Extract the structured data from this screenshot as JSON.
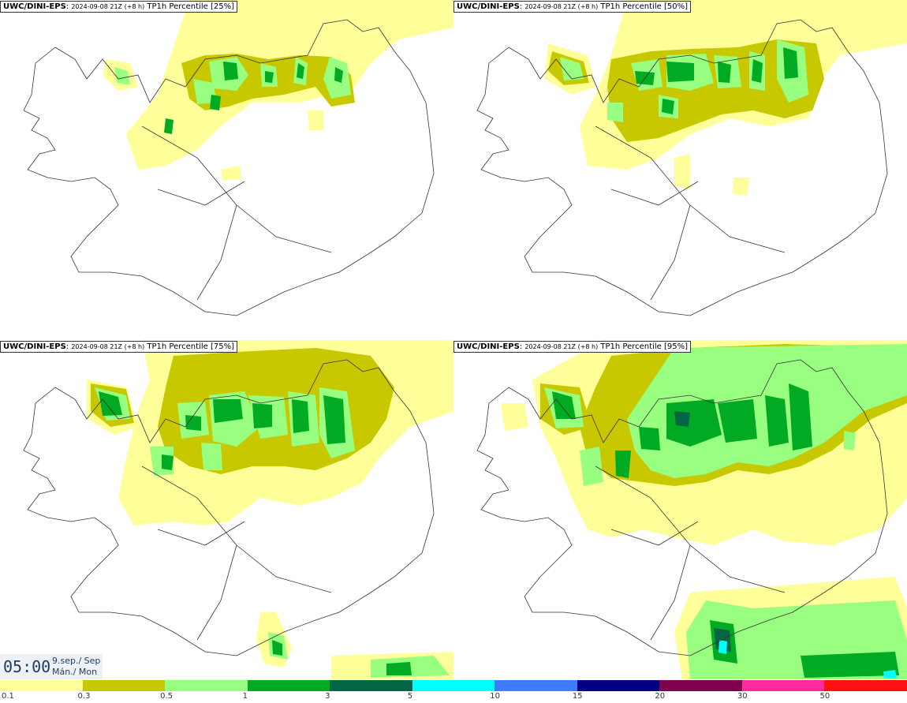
{
  "panels": [
    {
      "model": "UWC/DINI-EPS",
      "run": "2024-09-08 21Z (+8 h)",
      "field": "TP1h Percentile [25%]"
    },
    {
      "model": "UWC/DINI-EPS",
      "run": "2024-09-08 21Z (+8 h)",
      "field": "TP1h Percentile [50%]"
    },
    {
      "model": "UWC/DINI-EPS",
      "run": "2024-09-08 21Z (+8 h)",
      "field": "TP1h Percentile [75%]"
    },
    {
      "model": "UWC/DINI-EPS",
      "run": "2024-09-08 21Z (+8 h)",
      "field": "TP1h Percentile [95%]"
    }
  ],
  "timebox": {
    "time": "05:00",
    "date_line1": "9.sep./ Sep",
    "date_line2": "Mán./ Mon"
  },
  "legend": {
    "ticks": [
      "0.1",
      "0.3",
      "0.5",
      "1",
      "3",
      "5",
      "10",
      "15",
      "20",
      "30",
      "50"
    ],
    "colors": [
      "#ffff99",
      "#c8c800",
      "#99ff80",
      "#00aa22",
      "#006644",
      "#00ffff",
      "#3d7bff",
      "#000080",
      "#800050",
      "#ff2aa0",
      "#ff1010"
    ]
  },
  "map_colors": {
    "light": "#ffff99",
    "olive": "#c8c800",
    "lightgreen": "#99ff80",
    "green": "#00aa22",
    "darkgreen": "#006644",
    "cyan": "#00ffff"
  }
}
